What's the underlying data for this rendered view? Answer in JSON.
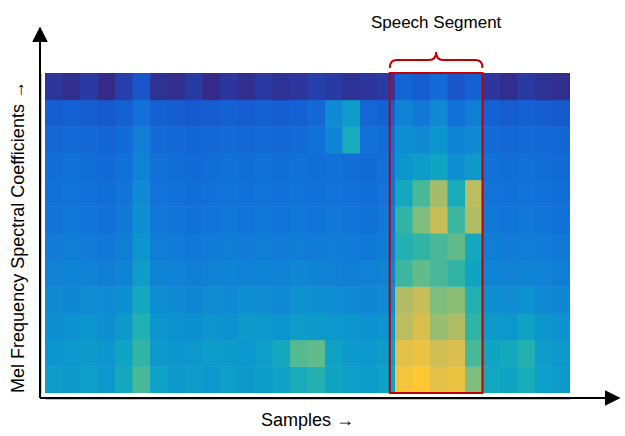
{
  "chart_data": {
    "type": "heatmap",
    "x_label": "Samples →",
    "y_label": "Mel Frequency Spectral Coefficients →",
    "xlim": [
      0,
      30
    ],
    "ylim": [
      0,
      12
    ],
    "xticks": [],
    "yticks": [],
    "tick_labels": false,
    "annotations": [
      {
        "text": "Speech Segment",
        "x0": 19.7,
        "x1": 25.0
      }
    ],
    "cells": [
      [
        0.45,
        0.44,
        0.46,
        0.43,
        0.5,
        0.62,
        0.47,
        0.44,
        0.45,
        0.43,
        0.46,
        0.44,
        0.45,
        0.47,
        0.52,
        0.55,
        0.48,
        0.46,
        0.45,
        0.47,
        0.92,
        0.95,
        0.88,
        0.9,
        0.7,
        0.5,
        0.48,
        0.52,
        0.46,
        0.44
      ],
      [
        0.42,
        0.43,
        0.44,
        0.42,
        0.48,
        0.58,
        0.44,
        0.42,
        0.43,
        0.45,
        0.44,
        0.43,
        0.46,
        0.5,
        0.64,
        0.66,
        0.47,
        0.44,
        0.43,
        0.45,
        0.88,
        0.9,
        0.84,
        0.86,
        0.62,
        0.48,
        0.5,
        0.55,
        0.45,
        0.43
      ],
      [
        0.4,
        0.41,
        0.42,
        0.4,
        0.44,
        0.55,
        0.42,
        0.41,
        0.4,
        0.42,
        0.41,
        0.44,
        0.43,
        0.42,
        0.45,
        0.44,
        0.43,
        0.42,
        0.41,
        0.42,
        0.8,
        0.86,
        0.74,
        0.78,
        0.58,
        0.44,
        0.43,
        0.47,
        0.42,
        0.41
      ],
      [
        0.38,
        0.37,
        0.39,
        0.38,
        0.4,
        0.5,
        0.4,
        0.38,
        0.37,
        0.39,
        0.38,
        0.4,
        0.39,
        0.38,
        0.41,
        0.4,
        0.39,
        0.38,
        0.37,
        0.38,
        0.78,
        0.82,
        0.7,
        0.72,
        0.55,
        0.4,
        0.39,
        0.41,
        0.38,
        0.37
      ],
      [
        0.35,
        0.36,
        0.35,
        0.34,
        0.36,
        0.45,
        0.36,
        0.35,
        0.34,
        0.35,
        0.36,
        0.35,
        0.36,
        0.35,
        0.37,
        0.36,
        0.35,
        0.34,
        0.35,
        0.36,
        0.6,
        0.66,
        0.62,
        0.58,
        0.48,
        0.36,
        0.35,
        0.36,
        0.35,
        0.34
      ],
      [
        0.33,
        0.34,
        0.33,
        0.32,
        0.34,
        0.42,
        0.34,
        0.33,
        0.32,
        0.33,
        0.34,
        0.33,
        0.34,
        0.33,
        0.34,
        0.33,
        0.34,
        0.33,
        0.32,
        0.34,
        0.55,
        0.58,
        0.62,
        0.66,
        0.5,
        0.34,
        0.33,
        0.34,
        0.33,
        0.32
      ],
      [
        0.31,
        0.32,
        0.31,
        0.3,
        0.32,
        0.4,
        0.32,
        0.31,
        0.3,
        0.31,
        0.32,
        0.31,
        0.32,
        0.31,
        0.32,
        0.31,
        0.32,
        0.31,
        0.3,
        0.32,
        0.58,
        0.7,
        0.82,
        0.6,
        0.78,
        0.32,
        0.31,
        0.32,
        0.31,
        0.3
      ],
      [
        0.3,
        0.31,
        0.3,
        0.29,
        0.31,
        0.38,
        0.31,
        0.3,
        0.29,
        0.3,
        0.31,
        0.3,
        0.31,
        0.3,
        0.31,
        0.3,
        0.31,
        0.3,
        0.29,
        0.31,
        0.5,
        0.62,
        0.76,
        0.52,
        0.8,
        0.31,
        0.3,
        0.31,
        0.3,
        0.29
      ],
      [
        0.29,
        0.3,
        0.29,
        0.28,
        0.3,
        0.36,
        0.3,
        0.29,
        0.28,
        0.29,
        0.3,
        0.29,
        0.3,
        0.29,
        0.3,
        0.29,
        0.3,
        0.29,
        0.28,
        0.3,
        0.42,
        0.45,
        0.48,
        0.4,
        0.44,
        0.3,
        0.29,
        0.3,
        0.29,
        0.28
      ],
      [
        0.27,
        0.28,
        0.27,
        0.26,
        0.28,
        0.34,
        0.28,
        0.27,
        0.26,
        0.27,
        0.28,
        0.27,
        0.28,
        0.27,
        0.28,
        0.3,
        0.36,
        0.52,
        0.3,
        0.28,
        0.4,
        0.38,
        0.42,
        0.36,
        0.38,
        0.28,
        0.27,
        0.28,
        0.27,
        0.26
      ],
      [
        0.24,
        0.25,
        0.24,
        0.23,
        0.25,
        0.3,
        0.25,
        0.24,
        0.23,
        0.24,
        0.25,
        0.24,
        0.25,
        0.24,
        0.25,
        0.27,
        0.38,
        0.45,
        0.27,
        0.25,
        0.36,
        0.32,
        0.38,
        0.3,
        0.34,
        0.25,
        0.24,
        0.25,
        0.24,
        0.23
      ],
      [
        0.14,
        0.12,
        0.15,
        0.11,
        0.16,
        0.22,
        0.13,
        0.12,
        0.15,
        0.11,
        0.14,
        0.12,
        0.15,
        0.13,
        0.14,
        0.16,
        0.15,
        0.13,
        0.14,
        0.15,
        0.26,
        0.24,
        0.28,
        0.22,
        0.25,
        0.14,
        0.12,
        0.15,
        0.13,
        0.12
      ]
    ]
  }
}
